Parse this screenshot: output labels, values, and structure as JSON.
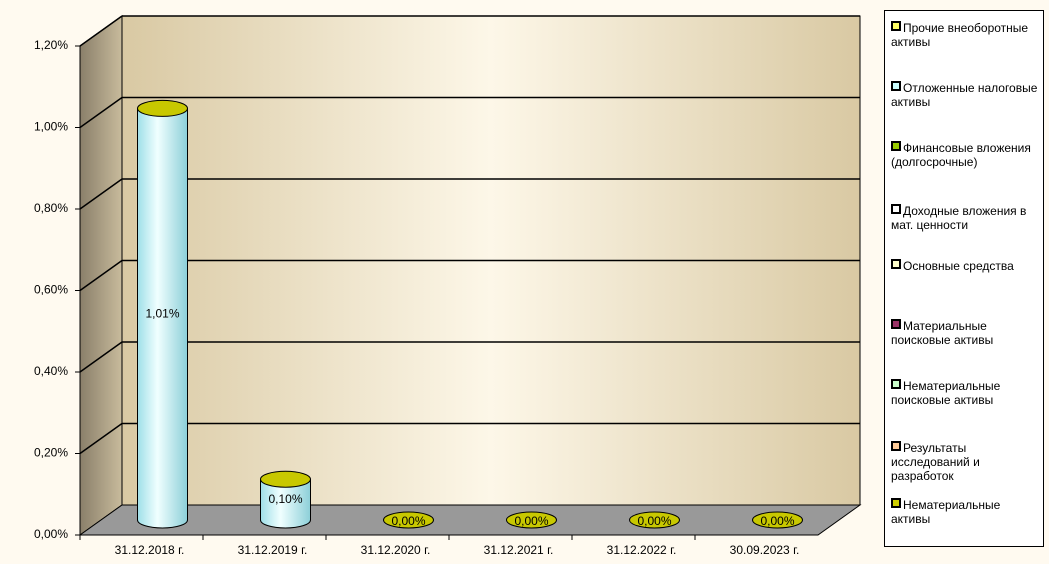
{
  "chart_data": {
    "type": "cylinder",
    "categories": [
      "31.12.2018 г.",
      "31.12.2019 г.",
      "31.12.2020 г.",
      "31.12.2021 г.",
      "31.12.2022 г.",
      "30.09.2023 г."
    ],
    "values": [
      1.01,
      0.1,
      0,
      0,
      0,
      0
    ],
    "value_labels": [
      "1,01%",
      "0,10%",
      "0,00%",
      "0,00%",
      "0,00%",
      "0,00%"
    ],
    "color": "#c8f4f8",
    "top_color": "#c8c800",
    "ylim": [
      0,
      1.2
    ],
    "yticks": [
      {
        "value": 0,
        "label": "0,00%"
      },
      {
        "value": 0.2,
        "label": "0,20%"
      },
      {
        "value": 0.4,
        "label": "0,40%"
      },
      {
        "value": 0.6,
        "label": "0,60%"
      },
      {
        "value": 0.8,
        "label": "0,80%"
      },
      {
        "value": 1.0,
        "label": "1,00%"
      },
      {
        "value": 1.2,
        "label": "1,20%"
      }
    ],
    "grid": true,
    "legend": [
      {
        "name": "Прочие внеоборотные активы",
        "color": "#ffff66"
      },
      {
        "name": "Отложенные налоговые активы",
        "color": "#ccffff"
      },
      {
        "name": "Финансовые вложения (долгосрочные)",
        "color": "#99cc00"
      },
      {
        "name": "Доходные вложения в мат. ценности",
        "color": "#ffffff"
      },
      {
        "name": "Основные средства",
        "color": "#ffffcc"
      },
      {
        "name": "Материальные поисковые активы",
        "color": "#993366"
      },
      {
        "name": "Нематериальные поисковые активы",
        "color": "#ccffcc"
      },
      {
        "name": "Результаты исследований и разработок",
        "color": "#ffcc99"
      },
      {
        "name": "Нематериальные активы",
        "color": "#cccc00"
      }
    ]
  }
}
